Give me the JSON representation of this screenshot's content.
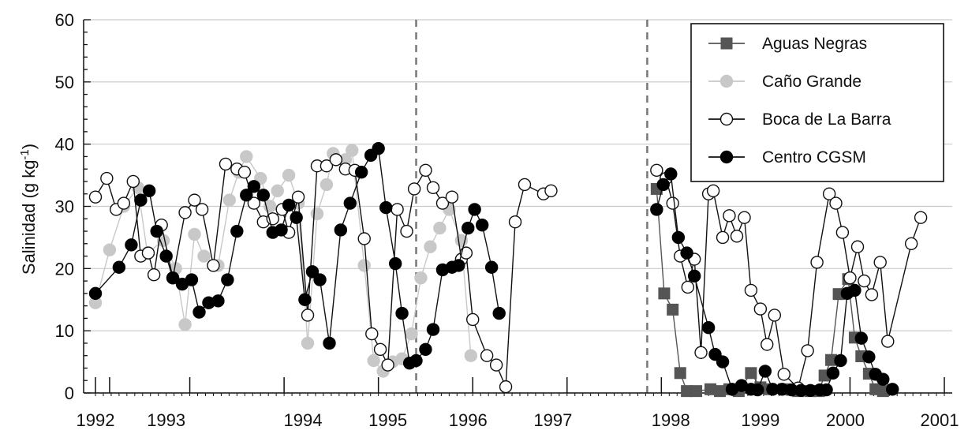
{
  "chart_data": {
    "type": "line",
    "xlabel": "",
    "ylabel": "Salinidad (g kg",
    "ylabel_sup": "-1",
    "ylabel_close": ")",
    "ylim": [
      0,
      60
    ],
    "xlim": [
      1992.0,
      2001.0
    ],
    "grid": true,
    "legend_position": "top-right",
    "y_ticks": [
      0,
      10,
      20,
      30,
      40,
      50,
      60
    ],
    "x_year_labels": [
      "1992",
      "1993",
      "1994",
      "1995",
      "1996",
      "1997",
      "1998",
      "1999",
      "2000",
      "2001"
    ],
    "x_label_pos": [
      1992.0,
      1992.75,
      1994.2,
      1995.1,
      1995.95,
      1996.85,
      1998.1,
      1999.05,
      1999.95,
      2000.95
    ],
    "x_major_ticks": [
      1992.0,
      1992.15,
      1993.0,
      1994.0,
      1995.0,
      1996.0,
      1997.0,
      1998.0,
      1999.0,
      2000.0,
      2001.0
    ],
    "vlines": [
      1995.4,
      1997.85
    ],
    "series": [
      {
        "name": "Aguas Negras",
        "color": "#555555",
        "marker": "square",
        "filled": true,
        "points": [
          [
            1997.95,
            32.8
          ],
          [
            1998.03,
            16.0
          ],
          [
            1998.12,
            13.4
          ],
          [
            1998.2,
            3.2
          ],
          [
            1998.27,
            0.3
          ],
          [
            1998.37,
            0.3
          ],
          [
            1998.52,
            0.6
          ],
          [
            1998.62,
            0.3
          ],
          [
            1998.72,
            0.6
          ],
          [
            1998.82,
            0.3
          ],
          [
            1998.95,
            3.2
          ],
          [
            1999.05,
            0.9
          ],
          [
            1999.15,
            0.6
          ],
          [
            1999.3,
            0.6
          ],
          [
            1999.45,
            0.3
          ],
          [
            1999.58,
            0.3
          ],
          [
            1999.67,
            0.3
          ],
          [
            1999.73,
            2.8
          ],
          [
            1999.8,
            5.3
          ],
          [
            1999.88,
            15.9
          ],
          [
            1999.98,
            18.3
          ],
          [
            2000.05,
            8.9
          ],
          [
            2000.12,
            5.9
          ],
          [
            2000.2,
            3.1
          ],
          [
            2000.27,
            0.6
          ],
          [
            2000.35,
            0.3
          ]
        ]
      },
      {
        "name": "Caño Grande",
        "color": "#c8c8c8",
        "marker": "circle",
        "filled": true,
        "points": [
          [
            1992.0,
            14.5
          ],
          [
            1992.15,
            23.0
          ],
          [
            1992.3,
            30.0
          ],
          [
            1992.45,
            33.0
          ],
          [
            1992.55,
            22.5
          ],
          [
            1992.72,
            24.5
          ],
          [
            1992.85,
            20.0
          ],
          [
            1992.95,
            11.0
          ],
          [
            1993.05,
            25.5
          ],
          [
            1993.15,
            22.0
          ],
          [
            1993.3,
            20.5
          ],
          [
            1993.42,
            31.0
          ],
          [
            1993.52,
            35.5
          ],
          [
            1993.6,
            38.0
          ],
          [
            1993.75,
            34.5
          ],
          [
            1993.85,
            30.0
          ],
          [
            1993.93,
            32.5
          ],
          [
            1994.05,
            35.0
          ],
          [
            1994.15,
            30.5
          ],
          [
            1994.25,
            8.0
          ],
          [
            1994.35,
            28.8
          ],
          [
            1994.45,
            33.5
          ],
          [
            1994.52,
            38.5
          ],
          [
            1994.65,
            37.5
          ],
          [
            1994.72,
            39.0
          ],
          [
            1994.85,
            20.5
          ],
          [
            1994.95,
            5.2
          ],
          [
            1995.05,
            3.5
          ],
          [
            1995.15,
            5.0
          ],
          [
            1995.25,
            5.5
          ],
          [
            1995.35,
            9.5
          ],
          [
            1995.45,
            18.5
          ],
          [
            1995.55,
            23.5
          ],
          [
            1995.65,
            26.5
          ],
          [
            1995.75,
            29.5
          ],
          [
            1995.88,
            24.5
          ],
          [
            1995.98,
            6.0
          ]
        ]
      },
      {
        "name": "Boca de La Barra",
        "color": "#111111",
        "marker": "circle",
        "filled": false,
        "points": [
          [
            1992.0,
            31.5
          ],
          [
            1992.12,
            34.5
          ],
          [
            1992.22,
            29.5
          ],
          [
            1992.3,
            30.5
          ],
          [
            1992.4,
            34.0
          ],
          [
            1992.48,
            22.0
          ],
          [
            1992.56,
            22.5
          ],
          [
            1992.62,
            19.0
          ],
          [
            1992.7,
            27.0
          ],
          [
            1992.82,
            18.5
          ],
          [
            1992.95,
            29.0
          ],
          [
            1993.05,
            31.0
          ],
          [
            1993.13,
            29.5
          ],
          [
            1993.25,
            20.5
          ],
          [
            1993.38,
            36.8
          ],
          [
            1993.5,
            36.0
          ],
          [
            1993.58,
            35.5
          ],
          [
            1993.68,
            30.5
          ],
          [
            1993.78,
            27.5
          ],
          [
            1993.88,
            28.0
          ],
          [
            1993.98,
            29.5
          ],
          [
            1994.05,
            25.8
          ],
          [
            1994.15,
            31.5
          ],
          [
            1994.25,
            12.5
          ],
          [
            1994.35,
            36.5
          ],
          [
            1994.45,
            36.5
          ],
          [
            1994.55,
            37.5
          ],
          [
            1994.65,
            36.0
          ],
          [
            1994.75,
            35.8
          ],
          [
            1994.85,
            24.8
          ],
          [
            1994.93,
            9.5
          ],
          [
            1995.02,
            7.0
          ],
          [
            1995.1,
            4.5
          ],
          [
            1995.2,
            29.5
          ],
          [
            1995.3,
            26.0
          ],
          [
            1995.38,
            32.8
          ],
          [
            1995.5,
            35.8
          ],
          [
            1995.58,
            33.0
          ],
          [
            1995.68,
            30.5
          ],
          [
            1995.78,
            31.5
          ],
          [
            1995.88,
            21.5
          ],
          [
            1995.93,
            22.5
          ],
          [
            1996.0,
            11.8
          ],
          [
            1996.15,
            6.0
          ],
          [
            1996.25,
            4.5
          ],
          [
            1996.35,
            1.0
          ],
          [
            1996.45,
            27.5
          ],
          [
            1996.55,
            33.5
          ],
          [
            1996.75,
            32.0
          ],
          [
            1996.83,
            32.5
          ],
          [
            1997.95,
            35.8
          ],
          [
            1998.05,
            34.5
          ],
          [
            1998.12,
            30.5
          ],
          [
            1998.2,
            22.0
          ],
          [
            1998.28,
            17.0
          ],
          [
            1998.35,
            21.5
          ],
          [
            1998.42,
            6.5
          ],
          [
            1998.5,
            32.0
          ],
          [
            1998.55,
            32.5
          ],
          [
            1998.65,
            25.0
          ],
          [
            1998.72,
            28.5
          ],
          [
            1998.8,
            25.2
          ],
          [
            1998.88,
            28.2
          ],
          [
            1998.95,
            16.5
          ],
          [
            1999.05,
            13.5
          ],
          [
            1999.12,
            7.8
          ],
          [
            1999.2,
            12.5
          ],
          [
            1999.3,
            3.0
          ],
          [
            1999.45,
            0.8
          ],
          [
            1999.55,
            6.8
          ],
          [
            1999.65,
            21.0
          ],
          [
            1999.78,
            32.0
          ],
          [
            1999.85,
            30.5
          ],
          [
            1999.92,
            25.8
          ],
          [
            2000.0,
            18.5
          ],
          [
            2000.08,
            23.5
          ],
          [
            2000.15,
            18.0
          ],
          [
            2000.23,
            15.8
          ],
          [
            2000.32,
            21.0
          ],
          [
            2000.4,
            8.3
          ],
          [
            2000.65,
            24.0
          ],
          [
            2000.75,
            28.2
          ]
        ]
      },
      {
        "name": "Centro CGSM",
        "color": "#000000",
        "marker": "circle",
        "filled": true,
        "points": [
          [
            1992.0,
            16.0
          ],
          [
            1992.25,
            20.2
          ],
          [
            1992.38,
            23.8
          ],
          [
            1992.48,
            31.0
          ],
          [
            1992.57,
            32.5
          ],
          [
            1992.65,
            26.0
          ],
          [
            1992.75,
            22.0
          ],
          [
            1992.82,
            18.5
          ],
          [
            1992.92,
            17.5
          ],
          [
            1993.02,
            18.2
          ],
          [
            1993.1,
            13.0
          ],
          [
            1993.2,
            14.5
          ],
          [
            1993.3,
            14.8
          ],
          [
            1993.4,
            18.2
          ],
          [
            1993.5,
            26.0
          ],
          [
            1993.6,
            31.8
          ],
          [
            1993.68,
            33.2
          ],
          [
            1993.78,
            31.8
          ],
          [
            1993.88,
            25.8
          ],
          [
            1993.97,
            26.2
          ],
          [
            1994.05,
            30.2
          ],
          [
            1994.13,
            28.2
          ],
          [
            1994.22,
            15.0
          ],
          [
            1994.3,
            19.5
          ],
          [
            1994.38,
            18.2
          ],
          [
            1994.48,
            8.0
          ],
          [
            1994.6,
            26.2
          ],
          [
            1994.7,
            30.5
          ],
          [
            1994.82,
            35.5
          ],
          [
            1994.92,
            38.2
          ],
          [
            1995.0,
            39.3
          ],
          [
            1995.08,
            29.8
          ],
          [
            1995.18,
            20.8
          ],
          [
            1995.25,
            12.8
          ],
          [
            1995.33,
            4.8
          ],
          [
            1995.4,
            5.2
          ],
          [
            1995.5,
            7.0
          ],
          [
            1995.58,
            10.2
          ],
          [
            1995.68,
            19.8
          ],
          [
            1995.78,
            20.2
          ],
          [
            1995.85,
            20.5
          ],
          [
            1995.95,
            26.5
          ],
          [
            1996.02,
            29.5
          ],
          [
            1996.1,
            27.0
          ],
          [
            1996.2,
            20.2
          ],
          [
            1996.28,
            12.8
          ],
          [
            1997.95,
            29.5
          ],
          [
            1998.02,
            33.5
          ],
          [
            1998.1,
            35.2
          ],
          [
            1998.18,
            25.0
          ],
          [
            1998.27,
            22.5
          ],
          [
            1998.35,
            18.8
          ],
          [
            1998.5,
            10.5
          ],
          [
            1998.57,
            6.2
          ],
          [
            1998.65,
            5.0
          ],
          [
            1998.75,
            0.6
          ],
          [
            1998.85,
            1.2
          ],
          [
            1998.95,
            0.6
          ],
          [
            1999.02,
            0.5
          ],
          [
            1999.1,
            3.5
          ],
          [
            1999.18,
            0.6
          ],
          [
            1999.28,
            0.6
          ],
          [
            1999.38,
            0.5
          ],
          [
            1999.48,
            0.4
          ],
          [
            1999.58,
            0.4
          ],
          [
            1999.68,
            0.5
          ],
          [
            1999.75,
            0.5
          ],
          [
            1999.82,
            3.2
          ],
          [
            1999.9,
            5.2
          ],
          [
            1999.97,
            16.0
          ],
          [
            2000.05,
            16.5
          ],
          [
            2000.12,
            8.8
          ],
          [
            2000.2,
            5.8
          ],
          [
            2000.27,
            3.0
          ],
          [
            2000.35,
            2.2
          ],
          [
            2000.45,
            0.6
          ]
        ]
      }
    ]
  }
}
